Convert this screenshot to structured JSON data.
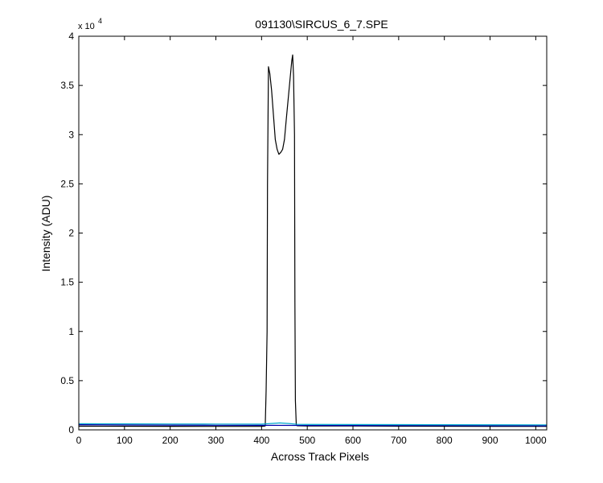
{
  "chart_data": {
    "type": "line",
    "title": "091130\\SIRCUS_6_7.SPE",
    "xlabel": "Across Track Pixels",
    "ylabel": "Intensity (ADU)",
    "xlim": [
      0,
      1024
    ],
    "ylim": [
      0,
      40000
    ],
    "x_ticks": [
      0,
      100,
      200,
      300,
      400,
      500,
      600,
      700,
      800,
      900,
      1000
    ],
    "y_ticks": [
      0,
      5000,
      10000,
      15000,
      20000,
      25000,
      30000,
      35000,
      40000
    ],
    "x_tick_labels": [
      "0",
      "100",
      "200",
      "300",
      "400",
      "500",
      "600",
      "700",
      "800",
      "900",
      "1000"
    ],
    "y_tick_labels": [
      "0",
      "0.5",
      "1",
      "1.5",
      "2",
      "2.5",
      "3",
      "3.5",
      "4"
    ],
    "y_exponent_base": "x 10",
    "y_exponent_power": "4",
    "grid": false,
    "series": [
      {
        "color": "#000000",
        "points": [
          [
            0,
            380
          ],
          [
            100,
            370
          ],
          [
            200,
            360
          ],
          [
            300,
            350
          ],
          [
            400,
            360
          ],
          [
            408,
            400
          ],
          [
            410,
            4000
          ],
          [
            412,
            10000
          ],
          [
            413,
            25000
          ],
          [
            415,
            36900
          ],
          [
            418,
            36200
          ],
          [
            422,
            34500
          ],
          [
            426,
            32000
          ],
          [
            430,
            29500
          ],
          [
            434,
            28500
          ],
          [
            438,
            28000
          ],
          [
            442,
            28200
          ],
          [
            446,
            28500
          ],
          [
            450,
            29500
          ],
          [
            454,
            31500
          ],
          [
            458,
            33500
          ],
          [
            462,
            35500
          ],
          [
            466,
            37500
          ],
          [
            468,
            38100
          ],
          [
            470,
            36000
          ],
          [
            472,
            30000
          ],
          [
            473,
            13000
          ],
          [
            474,
            3000
          ],
          [
            476,
            500
          ],
          [
            478,
            420
          ],
          [
            500,
            400
          ],
          [
            600,
            390
          ],
          [
            700,
            380
          ],
          [
            800,
            370
          ],
          [
            900,
            360
          ],
          [
            1024,
            350
          ]
        ]
      },
      {
        "color": "#0000aa",
        "points": [
          [
            0,
            520
          ],
          [
            100,
            500
          ],
          [
            200,
            480
          ],
          [
            300,
            470
          ],
          [
            400,
            460
          ],
          [
            500,
            450
          ],
          [
            600,
            440
          ],
          [
            700,
            430
          ],
          [
            800,
            430
          ],
          [
            900,
            420
          ],
          [
            1024,
            410
          ]
        ]
      },
      {
        "color": "#00aacc",
        "points": [
          [
            0,
            620
          ],
          [
            100,
            610
          ],
          [
            200,
            600
          ],
          [
            300,
            590
          ],
          [
            400,
            580
          ],
          [
            420,
            650
          ],
          [
            440,
            700
          ],
          [
            460,
            650
          ],
          [
            480,
            560
          ],
          [
            600,
            540
          ],
          [
            800,
            520
          ],
          [
            1024,
            510
          ]
        ]
      }
    ]
  }
}
